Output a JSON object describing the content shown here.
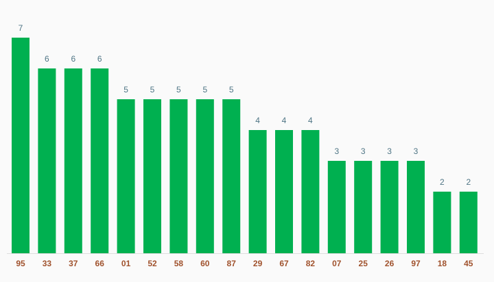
{
  "chart_data": {
    "type": "bar",
    "categories": [
      "95",
      "33",
      "37",
      "66",
      "01",
      "52",
      "58",
      "60",
      "87",
      "29",
      "67",
      "82",
      "07",
      "25",
      "26",
      "97",
      "18",
      "45"
    ],
    "values": [
      7,
      6,
      6,
      6,
      5,
      5,
      5,
      5,
      5,
      4,
      4,
      4,
      3,
      3,
      3,
      3,
      2,
      2
    ],
    "color": "#00b050"
  }
}
